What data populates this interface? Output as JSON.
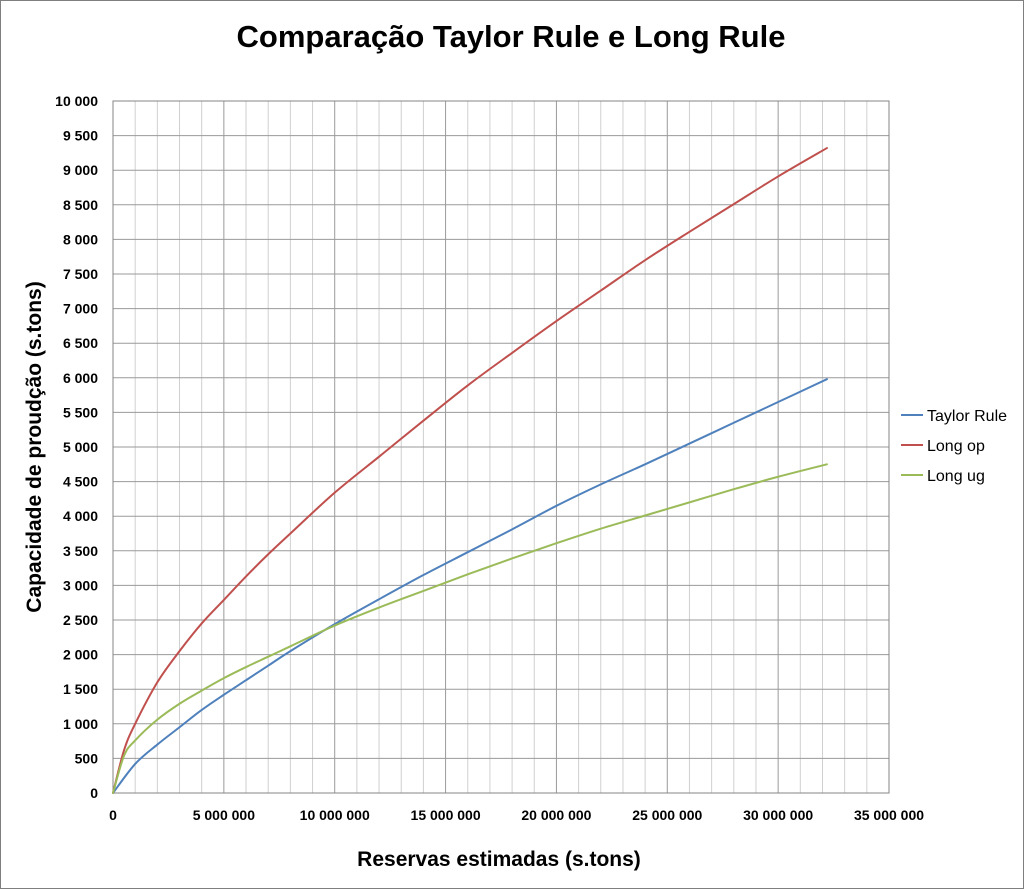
{
  "chart_data": {
    "type": "line",
    "title": "Comparação Taylor Rule e Long Rule",
    "xlabel": "Reservas estimadas (s.tons)",
    "ylabel": "Capacidade de proudção (s.tons)",
    "xlim": [
      0,
      35000000
    ],
    "ylim": [
      0,
      10000
    ],
    "x_major_ticks": [
      0,
      5000000,
      10000000,
      15000000,
      20000000,
      25000000,
      30000000,
      35000000
    ],
    "x_tick_labels": [
      "0",
      "5 000 000",
      "10 000 000",
      "15 000 000",
      "20 000 000",
      "25 000 000",
      "30 000 000",
      "35 000 000"
    ],
    "x_minor_step": 1000000,
    "y_major_ticks": [
      0,
      500,
      1000,
      1500,
      2000,
      2500,
      3000,
      3500,
      4000,
      4500,
      5000,
      5500,
      6000,
      6500,
      7000,
      7500,
      8000,
      8500,
      9000,
      9500,
      10000
    ],
    "y_tick_labels": [
      "0",
      "500",
      "1 000",
      "1 500",
      "2 000",
      "2 500",
      "3 000",
      "3 500",
      "4 000",
      "4 500",
      "5 000",
      "5 500",
      "6 000",
      "6 500",
      "7 000",
      "7 500",
      "8 000",
      "8 500",
      "9 000",
      "9 500",
      "10 000"
    ],
    "grid": true,
    "legend_position": "right",
    "series": [
      {
        "name": "Taylor Rule",
        "color": "#4f81bd",
        "x": [
          0,
          1000000,
          2000000,
          3000000,
          4000000,
          5000000,
          6000000,
          7000000,
          8000000,
          10000000,
          12000000,
          14000000,
          16000000,
          18000000,
          20000000,
          22000000,
          24000000,
          26000000,
          28000000,
          30000000,
          32200000
        ],
        "y": [
          0,
          420,
          700,
          950,
          1200,
          1420,
          1630,
          1840,
          2050,
          2440,
          2800,
          3150,
          3480,
          3810,
          4150,
          4460,
          4750,
          5050,
          5350,
          5650,
          5980
        ]
      },
      {
        "name": "Long op",
        "color": "#c0504d",
        "x": [
          0,
          500000,
          1000000,
          2000000,
          3000000,
          4000000,
          5000000,
          6000000,
          7000000,
          8000000,
          10000000,
          12000000,
          14000000,
          16000000,
          18000000,
          20000000,
          22000000,
          24000000,
          26000000,
          28000000,
          30000000,
          32200000
        ],
        "y": [
          0,
          620,
          1000,
          1600,
          2050,
          2450,
          2790,
          3130,
          3450,
          3750,
          4340,
          4860,
          5380,
          5890,
          6360,
          6820,
          7260,
          7700,
          8110,
          8510,
          8910,
          9320
        ]
      },
      {
        "name": "Long ug",
        "color": "#9bbb59",
        "x": [
          0,
          500000,
          1000000,
          2000000,
          3000000,
          4000000,
          5000000,
          6000000,
          7000000,
          8000000,
          10000000,
          12000000,
          14000000,
          16000000,
          18000000,
          20000000,
          22000000,
          24000000,
          26000000,
          28000000,
          30000000,
          32200000
        ],
        "y": [
          0,
          540,
          760,
          1060,
          1290,
          1480,
          1660,
          1820,
          1970,
          2120,
          2420,
          2680,
          2920,
          3160,
          3390,
          3610,
          3820,
          4010,
          4200,
          4390,
          4570,
          4750
        ]
      }
    ]
  }
}
